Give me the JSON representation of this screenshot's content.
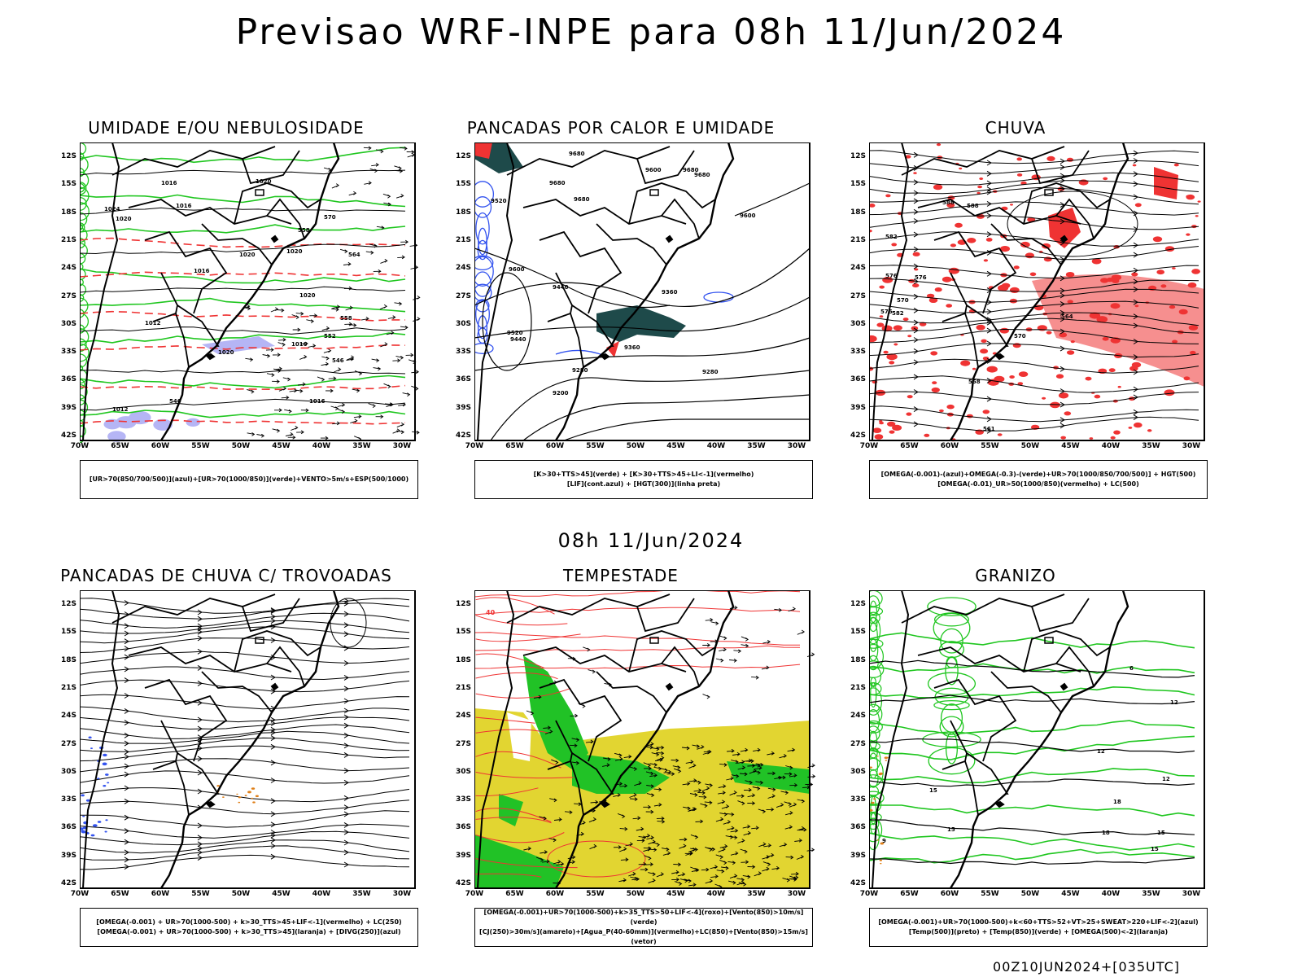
{
  "title": "Previsao WRF-INPE  para 08h 11/Jun/2024",
  "mid_title": "08h 11/Jun/2024",
  "footer": "00Z10JUN2024+[035UTC]",
  "axis": {
    "lat_labels": [
      "12S",
      "15S",
      "18S",
      "21S",
      "24S",
      "27S",
      "30S",
      "33S",
      "36S",
      "39S",
      "42S"
    ],
    "lon_labels": [
      "70W",
      "65W",
      "60W",
      "55W",
      "50W",
      "45W",
      "40W",
      "35W",
      "30W"
    ]
  },
  "colors": {
    "green": "#1fc61f",
    "red": "#ef3333",
    "blue": "#3353ef",
    "lavender": "#b5b5f5",
    "yellow": "#e2d531",
    "teal": "#1e4a4a",
    "orange": "#e0801a"
  },
  "panels": [
    {
      "title": "UMIDADE E/OU NEBULOSIDADE",
      "legend": [
        "[UR>70(850/700/500)](azul)+[UR>70(1000/850)](verde)+VENTO>5m/s+ESP(500/1000)"
      ],
      "labels": [
        "1016",
        "1016",
        "1020",
        "1024",
        "1020",
        "1016",
        "1020",
        "1020",
        "1016",
        "1012",
        "1020",
        "1016",
        "1012",
        "1020",
        "570",
        "564",
        "558",
        "552",
        "546",
        "558",
        "546"
      ]
    },
    {
      "title": "PANCADAS POR CALOR E UMIDADE",
      "legend": [
        "[K>30+TTS>45](verde) + [K>30+TTS>45+LI<-1](vermelho)",
        "[LIF](cont.azul) + [HGT(300)](linha preta)"
      ],
      "labels": [
        "9680",
        "9680",
        "9680",
        "9680",
        "9600",
        "9680",
        "9520",
        "9600",
        "9600",
        "9440",
        "9360",
        "9440",
        "9360",
        "9280",
        "9280",
        "9200",
        "9520"
      ]
    },
    {
      "title": "CHUVA",
      "legend": [
        "[OMEGA(-0.001)-(azul)+OMEGA(-0.3)-(verde)+UR>70(1000/850/700/500)] + HGT(500)",
        "[OMEGA(-0.01)_UR>50(1000/850)(vermelho) + LC(500)"
      ],
      "labels": [
        "588",
        "588",
        "582",
        "576",
        "570",
        "576",
        "582",
        "576",
        "570",
        "564",
        "558",
        "552",
        "561"
      ]
    },
    {
      "title": "PANCADAS DE CHUVA C/ TROVOADAS",
      "legend": [
        "[OMEGA(-0.001) + UR>70(1000-500) + k>30_TTS>45+LIF<-1](vermelho) + LC(250)",
        "[OMEGA(-0.001) + UR>70(1000-500) + k>30_TTS>45](laranja) + [DIVG(250)](azul)"
      ],
      "labels": []
    },
    {
      "title": "TEMPESTADE",
      "legend": [
        "[OMEGA(-0.001)+UR>70(1000-500)+k>35_TTS>50+LIF<-4](roxo)+[Vento(850)>10m/s](verde)",
        "[CJ(250)>30m/s](amarelo)+[Agua_P(40-60mm)](vermelho)+LC(850)+[Vento(850)>15m/s](vetor)"
      ],
      "labels": [
        "40"
      ]
    },
    {
      "title": "GRANIZO",
      "legend": [
        "[OMEGA(-0.001)+UR>70(1000-500)+k<60+TTS>52+VT>25+SWEAT>220+LIF<-2](azul)",
        "[Temp(500)](preto) + [Temp(850)](verde) + [OMEGA(500)<-2](laranja)"
      ],
      "labels": [
        "12",
        "12",
        "12",
        "15",
        "15",
        "18",
        "18",
        "15",
        "15",
        "6",
        "9"
      ]
    }
  ]
}
